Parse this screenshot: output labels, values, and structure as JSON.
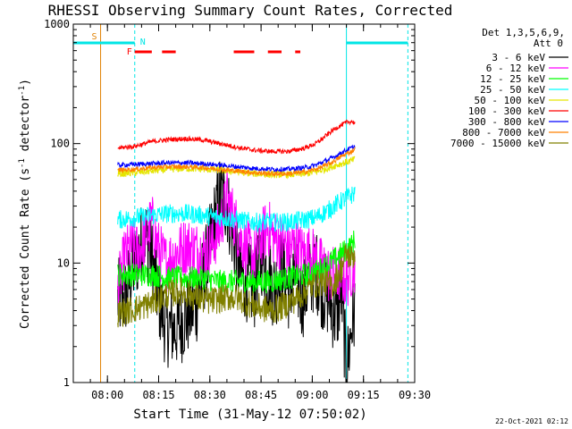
{
  "chart_data": {
    "type": "line",
    "title": "RHESSI Observing Summary Count Rates, Corrected",
    "xlabel": "Start Time (31-May-12 07:50:02)",
    "ylabel": "Corrected Count Rate (s^-1 detector^-1)",
    "ylabel_main": "Corrected Count Rate (s",
    "ylabel_sup1": "-1",
    "ylabel_mid": " detector",
    "ylabel_sup2": "-1",
    "ylabel_end": ")",
    "x_unit": "minutes after 07:50:02",
    "xlim": [
      0,
      100
    ],
    "ylim": [
      1,
      1000
    ],
    "yscale": "log",
    "grid": false,
    "legend_position": "right",
    "legend_title": [
      "Det 1,3,5,6,9,",
      "Att 0"
    ],
    "x_ticks": [
      {
        "label": "08:00",
        "value": 10
      },
      {
        "label": "08:15",
        "value": 25
      },
      {
        "label": "08:30",
        "value": 40
      },
      {
        "label": "08:45",
        "value": 55
      },
      {
        "label": "09:00",
        "value": 70
      },
      {
        "label": "09:15",
        "value": 85
      },
      {
        "label": "09:30",
        "value": 100
      }
    ],
    "y_ticks": [
      {
        "label": "1",
        "value": 1
      },
      {
        "label": "10",
        "value": 10
      },
      {
        "label": "100",
        "value": 100
      },
      {
        "label": "1000",
        "value": 1000
      }
    ],
    "markers": {
      "cyan_solid": [
        0,
        80
      ],
      "cyan_dashed": [
        18,
        98
      ],
      "saa_start": 8,
      "saa_label": "S",
      "night_label": "N",
      "flare_label": "F",
      "flare_segments": [
        [
          18,
          23
        ],
        [
          26,
          30
        ],
        [
          47,
          53
        ],
        [
          57,
          61
        ],
        [
          65,
          66.5
        ]
      ]
    },
    "colors": {
      "cyan": "#00e5e5",
      "orange_marker": "#e08000",
      "flare_red": "#ff0000"
    },
    "series": [
      {
        "name": "3 - 6 keV",
        "color": "#000000",
        "x": [
          13,
          15,
          17,
          19,
          21,
          23,
          25,
          27,
          30,
          33,
          36,
          39,
          41,
          43,
          45,
          47,
          49,
          51,
          53,
          55,
          57,
          59,
          61,
          63,
          65,
          67,
          69,
          71,
          73,
          75,
          77,
          78.5,
          80,
          81.5,
          82.5
        ],
        "y": [
          null,
          5,
          8,
          12,
          18,
          11,
          5,
          3,
          2.8,
          3.5,
          4.5,
          10,
          20,
          38,
          32,
          16,
          8,
          7,
          6,
          12,
          8,
          6,
          9,
          6,
          8,
          5,
          7,
          9,
          6,
          5,
          3.5,
          6,
          1.2,
          3,
          4
        ]
      },
      {
        "name": "6 - 12 keV",
        "color": "#ff00ff",
        "x": [
          13,
          15,
          17,
          19,
          21,
          23,
          25,
          27,
          30,
          33,
          36,
          39,
          41,
          43,
          45,
          47,
          49,
          51,
          53,
          55,
          57,
          59,
          61,
          63,
          65,
          67,
          69,
          71,
          73,
          75,
          77,
          78.5,
          80,
          81.5,
          82.5
        ],
        "y": [
          6,
          11,
          14,
          12,
          16,
          22,
          13,
          10,
          12,
          14,
          13,
          12,
          15,
          20,
          35,
          24,
          16,
          13,
          11,
          16,
          20,
          16,
          15,
          13,
          14,
          12,
          12,
          11,
          9,
          8,
          8,
          8,
          7,
          9,
          10
        ]
      },
      {
        "name": "12 - 25 keV",
        "color": "#00ff00",
        "x": [
          13,
          18,
          23,
          28,
          33,
          38,
          43,
          48,
          53,
          58,
          63,
          68,
          71,
          73,
          75,
          77,
          78.5,
          80,
          81.5,
          82.5
        ],
        "y": [
          8,
          8,
          8,
          7.5,
          7.5,
          7.5,
          7,
          7,
          7,
          7,
          7.5,
          8,
          8.5,
          9,
          10,
          11,
          12,
          13,
          14,
          16
        ]
      },
      {
        "name": "25 - 50 keV",
        "color": "#00ffff",
        "x": [
          13,
          18,
          23,
          28,
          33,
          38,
          43,
          48,
          53,
          58,
          63,
          68,
          71,
          73,
          75,
          77,
          78.5,
          80,
          81.5,
          82.5
        ],
        "y": [
          23,
          24,
          25,
          26,
          26,
          25,
          24,
          23,
          22,
          22,
          22,
          23,
          24,
          26,
          28,
          31,
          33,
          35,
          37,
          39
        ]
      },
      {
        "name": "50 - 100 keV",
        "color": "#e5e500",
        "x": [
          13,
          18,
          23,
          28,
          33,
          38,
          43,
          48,
          53,
          58,
          63,
          68,
          71,
          73,
          75,
          77,
          78.5,
          80,
          81.5,
          82.5
        ],
        "y": [
          56,
          57,
          59,
          61,
          62,
          61,
          60,
          58,
          56,
          55,
          55,
          56,
          58,
          60,
          63,
          66,
          68,
          70,
          72,
          74
        ]
      },
      {
        "name": "100 - 300 keV",
        "color": "#ff0000",
        "x": [
          13,
          18,
          23,
          28,
          33,
          38,
          43,
          48,
          53,
          58,
          63,
          68,
          71,
          73,
          75,
          77,
          78.5,
          80,
          81.5,
          82.5
        ],
        "y": [
          92,
          95,
          104,
          108,
          110,
          107,
          100,
          93,
          88,
          86,
          86,
          92,
          100,
          110,
          123,
          135,
          143,
          150,
          154,
          148
        ]
      },
      {
        "name": "300 - 800 keV",
        "color": "#0000ff",
        "x": [
          13,
          18,
          23,
          28,
          33,
          38,
          43,
          48,
          53,
          58,
          63,
          68,
          71,
          73,
          75,
          77,
          78.5,
          80,
          81.5,
          82.5
        ],
        "y": [
          66,
          67,
          68,
          69,
          69,
          68,
          66,
          64,
          62,
          61,
          61,
          63,
          66,
          70,
          74,
          79,
          84,
          88,
          92,
          95
        ]
      },
      {
        "name": "800 - 7000 keV",
        "color": "#ff8000",
        "x": [
          13,
          18,
          23,
          28,
          33,
          38,
          43,
          48,
          53,
          58,
          63,
          68,
          71,
          73,
          75,
          77,
          78.5,
          80,
          81.5,
          82.5
        ],
        "y": [
          60,
          61,
          63,
          64,
          64,
          63,
          61,
          59,
          57,
          56,
          56,
          58,
          61,
          64,
          68,
          73,
          78,
          82,
          86,
          90
        ]
      },
      {
        "name": "7000 - 15000 keV",
        "color": "#808000",
        "x": [
          13,
          16,
          19,
          22,
          25,
          28,
          31,
          34,
          37,
          40,
          43,
          46,
          49,
          52,
          55,
          58,
          61,
          64,
          67,
          70,
          73,
          76,
          78.5,
          80,
          81.5,
          82.5
        ],
        "y": [
          3.8,
          4,
          4.2,
          4.5,
          5,
          5.5,
          5.8,
          5.5,
          5,
          4.8,
          5,
          5.2,
          5,
          4.5,
          4.2,
          4,
          4.3,
          4.8,
          5.5,
          6.5,
          7,
          6.5,
          9,
          12,
          11,
          12
        ]
      }
    ]
  },
  "footer": {
    "timestamp": "22-Oct-2021 02:12"
  }
}
